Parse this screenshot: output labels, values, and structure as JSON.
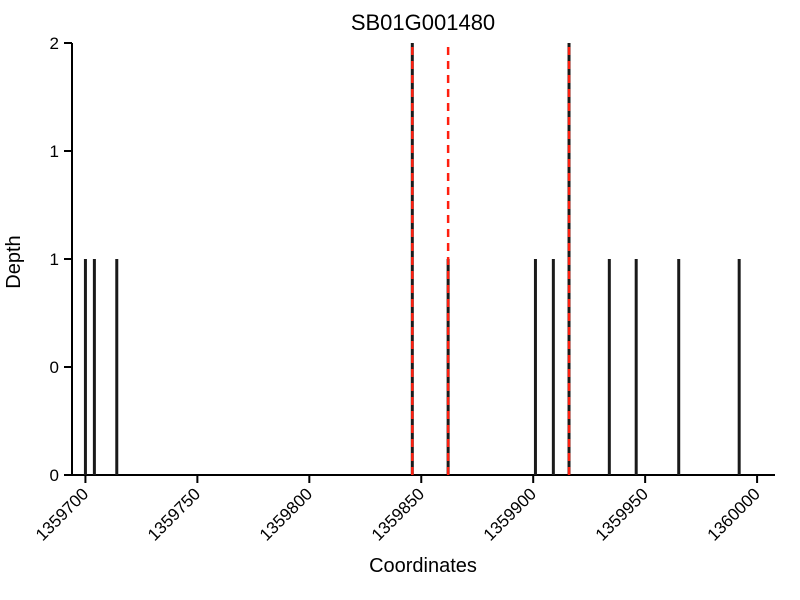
{
  "chart_data": {
    "type": "bar",
    "title": "SB01G001480",
    "xlabel": "Coordinates",
    "ylabel": "Depth",
    "xlim": [
      1359694,
      1360008
    ],
    "ylim": [
      0,
      2
    ],
    "x_ticks": {
      "values": [
        1359700,
        1359750,
        1359800,
        1359850,
        1359900,
        1359950,
        1360000
      ],
      "labels": [
        "1359700",
        "1359750",
        "1359800",
        "1359850",
        "1359900",
        "1359950",
        "1360000"
      ],
      "rotation_deg": -45
    },
    "y_ticks": {
      "values": [
        0,
        0.5,
        1,
        1.5,
        2
      ],
      "labels": [
        "0",
        "0",
        "1",
        "1",
        "2"
      ]
    },
    "spikes": [
      {
        "x": 1359700,
        "depth": 1
      },
      {
        "x": 1359704,
        "depth": 1
      },
      {
        "x": 1359714,
        "depth": 1
      },
      {
        "x": 1359846,
        "depth": 2
      },
      {
        "x": 1359862,
        "depth": 1
      },
      {
        "x": 1359901,
        "depth": 1
      },
      {
        "x": 1359909,
        "depth": 1
      },
      {
        "x": 1359916,
        "depth": 2
      },
      {
        "x": 1359934,
        "depth": 1
      },
      {
        "x": 1359946,
        "depth": 1
      },
      {
        "x": 1359965,
        "depth": 1
      },
      {
        "x": 1359992,
        "depth": 1
      }
    ],
    "red_dashed_lines": {
      "x": [
        1359846,
        1359862,
        1359916
      ],
      "height": 2,
      "style": "dashed"
    },
    "legend": null,
    "grid": false,
    "colors": {
      "spike": "#1a1a1a",
      "red_line": "#ff1f0f",
      "axis": "#000000",
      "background": "#ffffff"
    }
  }
}
